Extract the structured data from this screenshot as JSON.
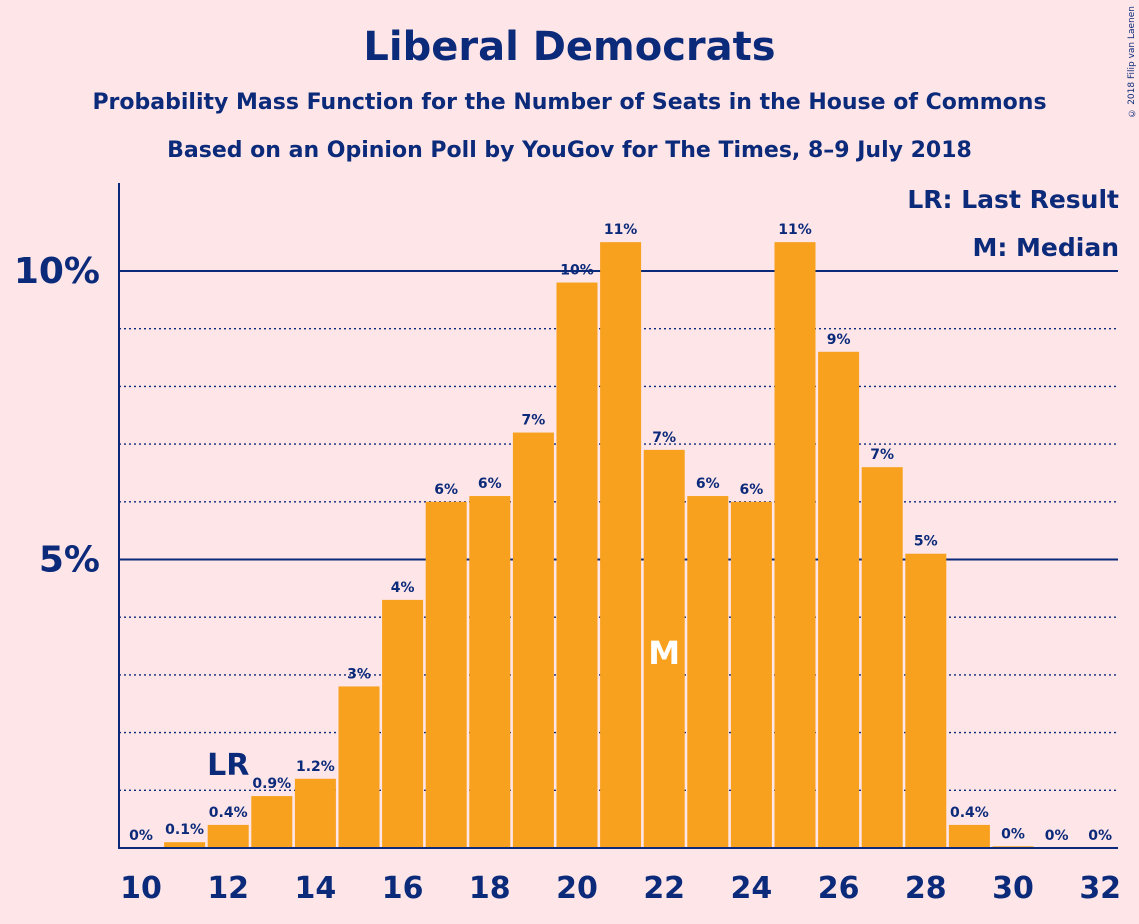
{
  "title": "Liberal Democrats",
  "subtitle": "Probability Mass Function for the Number of Seats in the House of Commons",
  "subtitle2": "Based on an Opinion Poll by YouGov for The Times, 8–9 July 2018",
  "copyright": "© 2018 Filip van Laenen",
  "legend": {
    "last_result": "LR: Last Result",
    "median": "M: Median"
  },
  "markers": {
    "last_result_label": "LR",
    "median_label": "M"
  },
  "colors": {
    "bar": "#f7a11e",
    "text": "#0c2a7a",
    "background": "#fde5e8"
  },
  "chart_data": {
    "type": "bar",
    "categories": [
      10,
      11,
      12,
      13,
      14,
      15,
      16,
      17,
      18,
      19,
      20,
      21,
      22,
      23,
      24,
      25,
      26,
      27,
      28,
      29,
      30,
      31,
      32
    ],
    "values": [
      0,
      0.1,
      0.4,
      0.9,
      1.2,
      2.8,
      4.3,
      6.0,
      6.1,
      7.2,
      9.8,
      10.5,
      6.9,
      6.1,
      6.0,
      10.5,
      8.6,
      6.6,
      5.1,
      0.4,
      0.03,
      0,
      0
    ],
    "data_labels": [
      "0%",
      "0.1%",
      "0.4%",
      "0.9%",
      "1.2%",
      "3%",
      "4%",
      "6%",
      "6%",
      "7%",
      "10%",
      "11%",
      "7%",
      "6%",
      "6%",
      "11%",
      "9%",
      "7%",
      "5%",
      "0.4%",
      "0%",
      "0%",
      "0%"
    ],
    "x_tick_labels": [
      "10",
      "12",
      "14",
      "16",
      "18",
      "20",
      "22",
      "24",
      "26",
      "28",
      "30",
      "32"
    ],
    "y_tick_labels": [
      "5%",
      "10%"
    ],
    "ylim": [
      0,
      11.5
    ],
    "last_result": 12,
    "median": 22,
    "grid": true
  }
}
